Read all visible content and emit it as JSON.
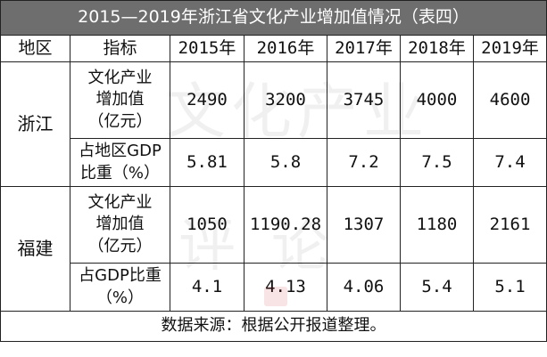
{
  "table": {
    "title": "2015—2019年浙江省文化产业增加值情况（表四）",
    "header": [
      "地区",
      "指标",
      "2015年",
      "2016年",
      "2017年",
      "2018年",
      "2019年"
    ],
    "zhejiang": {
      "region": "浙江",
      "row1": {
        "indicator": "文化产业\n增加值\n（亿元）",
        "values": [
          "2490",
          "3200",
          "3745",
          "4000",
          "4600"
        ]
      },
      "row2": {
        "indicator": "占地区GDP\n比重（%）",
        "values": [
          "5.81",
          "5.8",
          "7.2",
          "7.5",
          "7.4"
        ]
      }
    },
    "fujian": {
      "region": "福建",
      "row1": {
        "indicator": "文化产业\n增加值\n（亿元）",
        "values": [
          "1050",
          "1190.28",
          "1307",
          "1180",
          "2161"
        ]
      },
      "row2": {
        "indicator": "占GDP比重\n（%）",
        "values": [
          "4.1",
          "4.13",
          "4.06",
          "5.4",
          "5.1"
        ]
      }
    },
    "note": "数据来源：根据公开报道整理。"
  },
  "watermark": [
    "文化产业",
    "评论"
  ]
}
